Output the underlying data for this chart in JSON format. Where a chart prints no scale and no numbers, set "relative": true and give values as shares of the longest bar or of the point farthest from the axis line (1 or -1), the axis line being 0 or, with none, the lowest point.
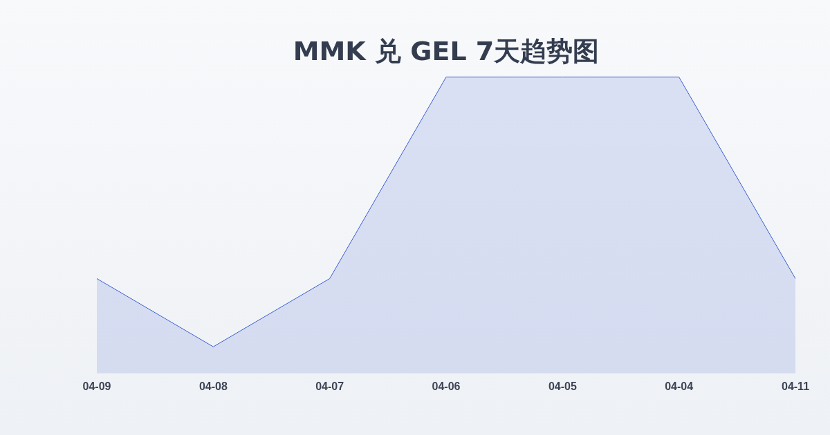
{
  "chart_data": {
    "type": "area",
    "title": "MMK 兑 GEL 7天趋势图",
    "categories": [
      "04-09",
      "04-08",
      "04-07",
      "04-06",
      "04-05",
      "04-04",
      "04-11"
    ],
    "relative": true,
    "series": [
      {
        "color": "#3a5fcd",
        "values": [
          0.32,
          0.09,
          0.32,
          1,
          1,
          1,
          0.32
        ]
      }
    ],
    "legend": false,
    "marker": "none"
  }
}
